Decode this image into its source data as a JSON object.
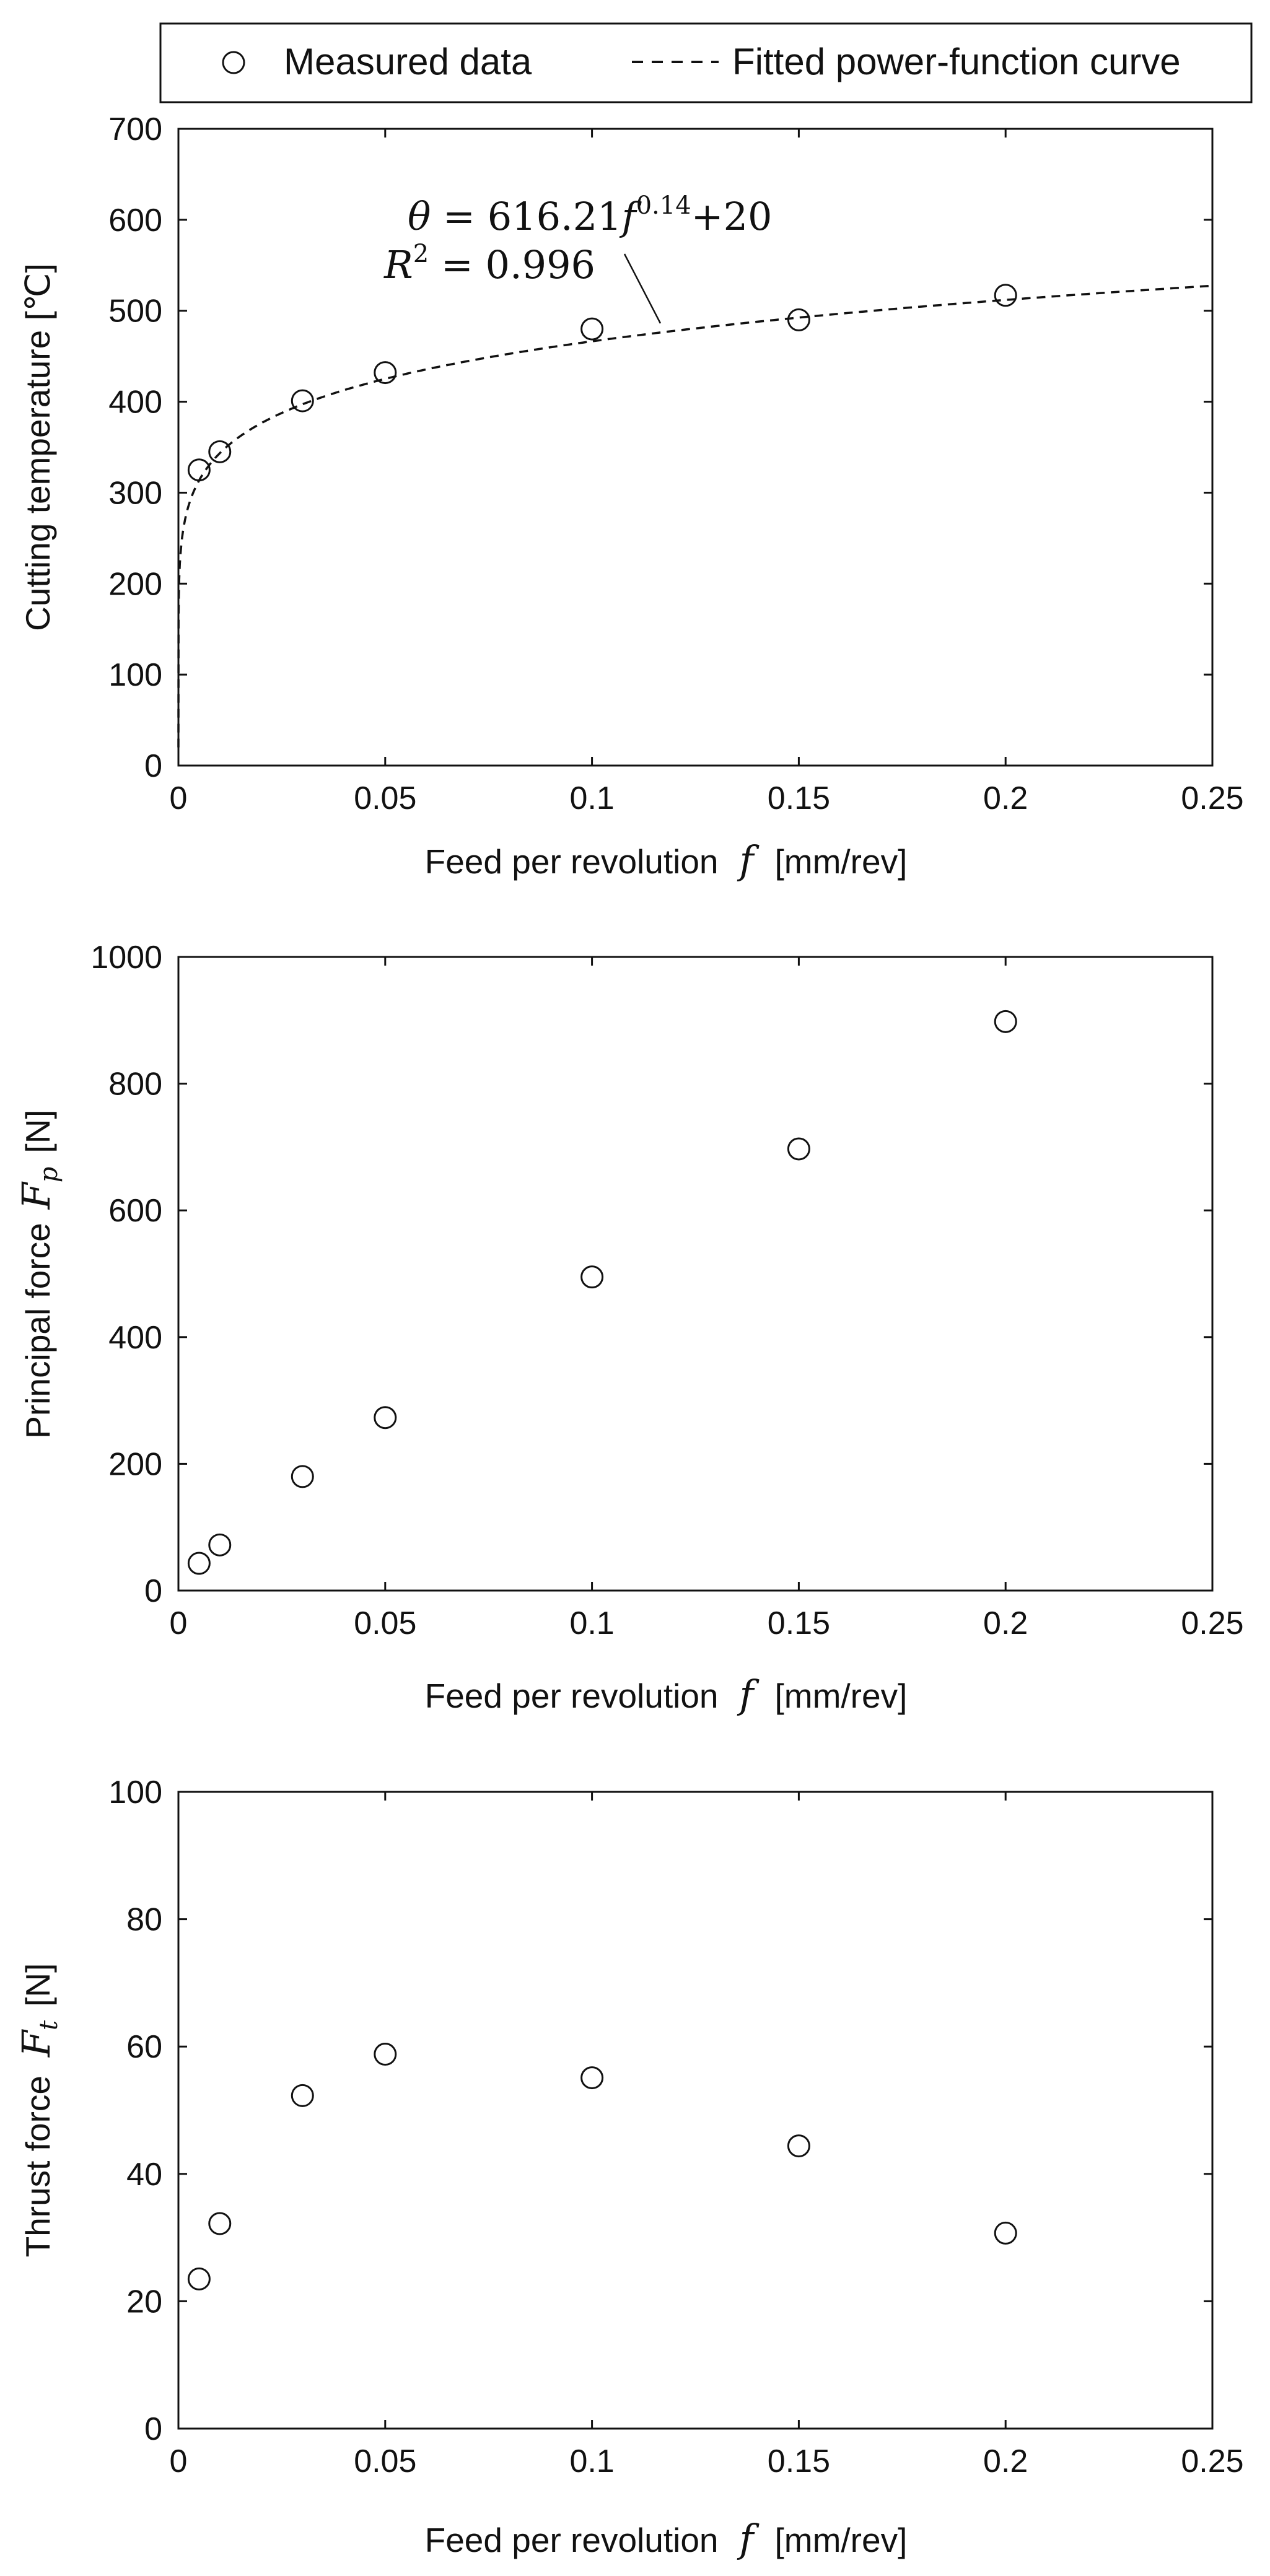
{
  "legend": {
    "measured_label": "Measured data",
    "fit_label": "Fitted power-function curve",
    "fit_dash_glyph": "- - -",
    "marker_glyph": "○"
  },
  "fit_annotation": {
    "theta_var": "θ",
    "equals": " = 616.21",
    "f_var": "f",
    "exponent": "0.14",
    "plus_const": "+20",
    "r_var": "R",
    "r_exp": "2",
    "r_value": " = 0.996"
  },
  "shared_xlabel": {
    "prefix": "Feed per revolution",
    "var": "f",
    "unit": "[mm/rev]"
  },
  "ylabels": {
    "temperature": {
      "text": "Cutting temperature [℃]"
    },
    "principal": {
      "prefix": "Principal force",
      "var": "F",
      "sub": "p",
      "unit": "[N]"
    },
    "thrust": {
      "prefix": "Thrust force",
      "var": "F",
      "sub": "t",
      "unit": "[N]"
    }
  },
  "chart_data": [
    {
      "type": "scatter",
      "title": "",
      "xlabel": "Feed per revolution f [mm/rev]",
      "ylabel": "Cutting temperature [℃]",
      "xlim": [
        0,
        0.25
      ],
      "ylim": [
        0,
        700
      ],
      "x_ticks": [
        "0",
        "0.05",
        "0.1",
        "0.15",
        "0.2",
        "0.25"
      ],
      "y_ticks": [
        "0",
        "100",
        "200",
        "300",
        "400",
        "500",
        "600",
        "700"
      ],
      "series": [
        {
          "name": "Measured data",
          "x": [
            0.005,
            0.01,
            0.03,
            0.05,
            0.1,
            0.15,
            0.2
          ],
          "y": [
            325,
            345,
            401,
            432,
            480,
            490,
            517
          ]
        },
        {
          "name": "Fitted power-function curve",
          "kind": "line",
          "coef": 616.21,
          "exponent": 0.14,
          "offset": 20
        }
      ],
      "legend": "top"
    },
    {
      "type": "scatter",
      "title": "",
      "xlabel": "Feed per revolution f [mm/rev]",
      "ylabel": "Principal force Fp [N]",
      "xlim": [
        0,
        0.25
      ],
      "ylim": [
        0,
        1000
      ],
      "x_ticks": [
        "0",
        "0.05",
        "0.1",
        "0.15",
        "0.2",
        "0.25"
      ],
      "y_ticks": [
        "0",
        "200",
        "400",
        "600",
        "800",
        "1000"
      ],
      "series": [
        {
          "name": "Measured data",
          "x": [
            0.005,
            0.01,
            0.03,
            0.05,
            0.1,
            0.15,
            0.2
          ],
          "y": [
            43,
            72,
            180,
            273,
            495,
            697,
            898
          ]
        }
      ]
    },
    {
      "type": "scatter",
      "title": "",
      "xlabel": "Feed per revolution f [mm/rev]",
      "ylabel": "Thrust force Ft [N]",
      "xlim": [
        0,
        0.25
      ],
      "ylim": [
        0,
        100
      ],
      "x_ticks": [
        "0",
        "0.05",
        "0.1",
        "0.15",
        "0.2",
        "0.25"
      ],
      "y_ticks": [
        "0",
        "20",
        "40",
        "60",
        "80",
        "100"
      ],
      "series": [
        {
          "name": "Measured data",
          "x": [
            0.005,
            0.01,
            0.03,
            0.05,
            0.1,
            0.15,
            0.2
          ],
          "y": [
            23.5,
            32.2,
            52.3,
            58.8,
            55.1,
            44.4,
            30.7
          ]
        }
      ]
    }
  ]
}
